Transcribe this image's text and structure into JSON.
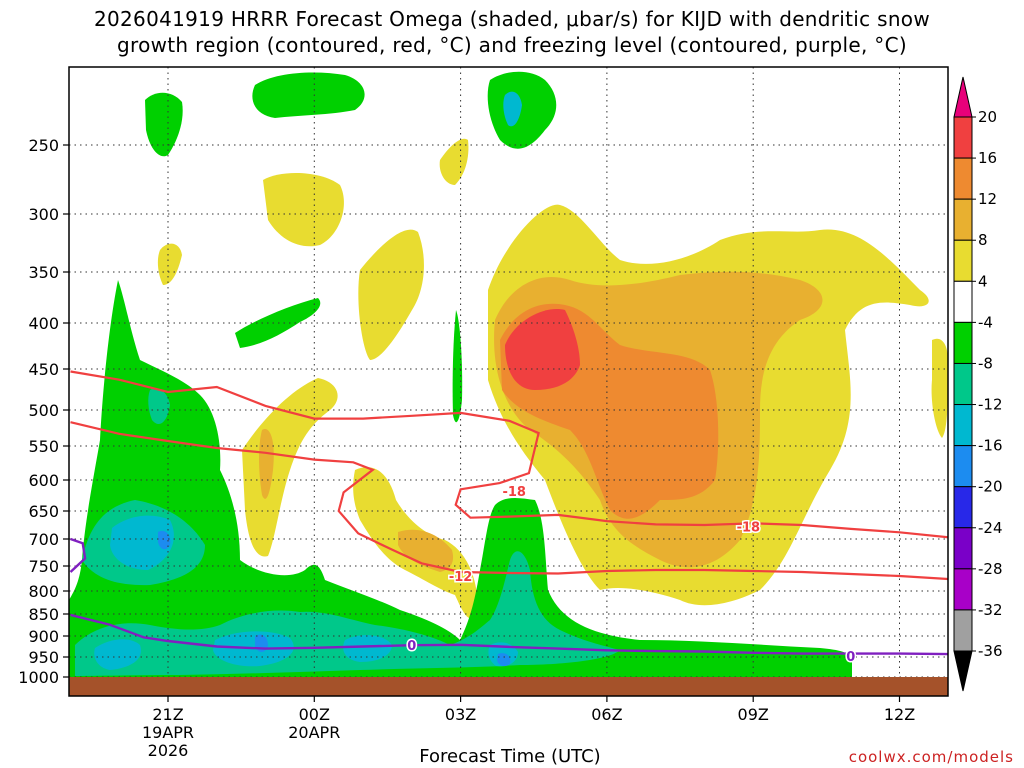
{
  "title": {
    "line1": "2026041919 HRRR Forecast Omega (shaded, μbar/s) for KIJD with dendritic snow",
    "line2": "growth region (contoured, red, °C) and freezing level (contoured, purple, °C)"
  },
  "xlabel": "Forecast Time (UTC)",
  "credit": "coolwx.com/models",
  "chart_data": {
    "type": "heatmap",
    "x_ticks": [
      {
        "label": "21Z",
        "sub1": "19APR",
        "sub2": "2026",
        "hour": 21
      },
      {
        "label": "00Z",
        "sub1": "20APR",
        "sub2": "",
        "hour": 24
      },
      {
        "label": "03Z",
        "sub1": "",
        "sub2": "",
        "hour": 27
      },
      {
        "label": "06Z",
        "sub1": "",
        "sub2": "",
        "hour": 30
      },
      {
        "label": "09Z",
        "sub1": "",
        "sub2": "",
        "hour": 33
      },
      {
        "label": "12Z",
        "sub1": "",
        "sub2": "",
        "hour": 36
      }
    ],
    "x_range_hours": [
      19,
      37
    ],
    "y_axis": "pressure (mb)",
    "y_ticks": [
      250,
      300,
      350,
      400,
      450,
      500,
      550,
      600,
      650,
      700,
      750,
      800,
      850,
      900,
      950,
      1000
    ],
    "y_range": [
      200,
      1020
    ],
    "grid": true,
    "colorbar": {
      "levels": [
        20,
        16,
        12,
        8,
        4,
        -4,
        -8,
        -12,
        -16,
        -20,
        -24,
        -28,
        -32,
        -36
      ],
      "colors": [
        "#e8007a",
        "#f04040",
        "#ee8a30",
        "#e8b030",
        "#e8dc30",
        "#ffffff",
        "#00d000",
        "#00c88a",
        "#00b8d0",
        "#1c8cf0",
        "#2828e8",
        "#7a00c8",
        "#a800c8",
        "#a0a0a0",
        "#000000"
      ]
    },
    "omega_colors": {
      "m8": "#00d000",
      "m12": "#00c88a",
      "m16": "#00b8d0",
      "m20": "#1c8cf0",
      "p4": "#e8dc30",
      "p8": "#e8b030",
      "p12": "#ee8a30",
      "p16": "#f04040"
    },
    "dgz_contours": [
      {
        "label": "-12",
        "color": "#f04040",
        "points": [
          [
            19.0,
            517
          ],
          [
            20.0,
            533
          ],
          [
            21.0,
            543
          ],
          [
            22.0,
            553
          ],
          [
            23.0,
            560
          ],
          [
            24.0,
            570
          ],
          [
            24.8,
            574
          ],
          [
            25.2,
            585
          ],
          [
            24.6,
            620
          ],
          [
            24.5,
            650
          ],
          [
            24.9,
            690
          ],
          [
            25.6,
            720
          ],
          [
            26.2,
            745
          ],
          [
            27.0,
            762
          ],
          [
            28.0,
            764
          ],
          [
            29.0,
            765
          ],
          [
            30.0,
            760
          ],
          [
            31.0,
            758
          ],
          [
            32.0,
            758
          ],
          [
            33.0,
            760
          ],
          [
            34.0,
            762
          ],
          [
            35.0,
            766
          ],
          [
            36.0,
            770
          ],
          [
            37.0,
            776
          ]
        ]
      },
      {
        "label": "-18",
        "color": "#f04040",
        "points": [
          [
            19.0,
            453
          ],
          [
            20.0,
            463
          ],
          [
            21.0,
            478
          ],
          [
            22.0,
            472
          ],
          [
            23.0,
            495
          ],
          [
            24.0,
            512
          ],
          [
            25.0,
            512
          ],
          [
            26.0,
            508
          ],
          [
            27.0,
            504
          ],
          [
            28.0,
            515
          ],
          [
            28.6,
            532
          ],
          [
            28.4,
            590
          ],
          [
            27.8,
            605
          ],
          [
            27.0,
            615
          ],
          [
            26.9,
            640
          ],
          [
            27.2,
            662
          ],
          [
            28.0,
            660
          ],
          [
            29.0,
            657
          ],
          [
            30.0,
            668
          ],
          [
            31.0,
            674
          ],
          [
            32.0,
            675
          ],
          [
            33.0,
            672
          ],
          [
            34.0,
            675
          ],
          [
            35.0,
            682
          ],
          [
            36.0,
            688
          ],
          [
            37.0,
            697
          ]
        ]
      }
    ],
    "freezing_level": {
      "label": "0",
      "color": "#8020c0",
      "points": [
        [
          19.0,
          852
        ],
        [
          19.8,
          874
        ],
        [
          20.5,
          903
        ],
        [
          21.0,
          912
        ],
        [
          22.0,
          925
        ],
        [
          23.0,
          930
        ],
        [
          24.0,
          928
        ],
        [
          25.0,
          925
        ],
        [
          26.0,
          922
        ],
        [
          27.0,
          921
        ],
        [
          28.0,
          926
        ],
        [
          29.0,
          930
        ],
        [
          30.0,
          934
        ],
        [
          31.0,
          936
        ],
        [
          32.0,
          937
        ],
        [
          33.0,
          940
        ],
        [
          34.0,
          942
        ],
        [
          35.0,
          942
        ],
        [
          36.0,
          942
        ],
        [
          37.0,
          943
        ]
      ]
    },
    "freezing_level_left_edge": [
      [
        19.0,
        700
      ],
      [
        19.25,
        708
      ],
      [
        19.3,
        736
      ],
      [
        19.0,
        762
      ]
    ],
    "label_positions": {
      "m12": [
        27.0,
        770
      ],
      "m18a": [
        28.1,
        618
      ],
      "m18b": [
        32.9,
        678
      ],
      "zero_a": [
        26.0,
        922
      ],
      "zero_b": [
        35.0,
        948
      ]
    }
  }
}
